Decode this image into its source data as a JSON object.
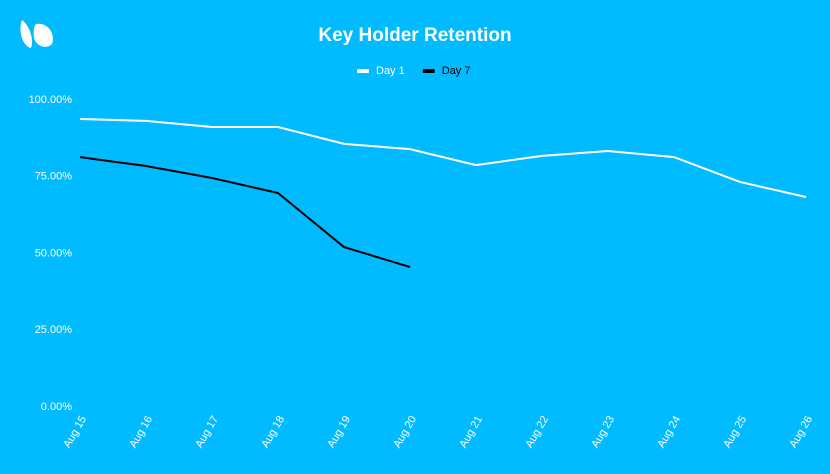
{
  "chart_data": {
    "type": "line",
    "title": "Key Holder Retention",
    "categories": [
      "Aug 15",
      "Aug 16",
      "Aug 17",
      "Aug 18",
      "Aug 19",
      "Aug 20",
      "Aug 21",
      "Aug 22",
      "Aug 23",
      "Aug 24",
      "Aug 25",
      "Aug 26"
    ],
    "series": [
      {
        "name": "Day 1",
        "color": "#ffffff",
        "values": [
          93.8,
          93.2,
          91.2,
          91.2,
          85.7,
          84.0,
          78.8,
          81.8,
          83.4,
          81.4,
          73.3,
          68.4
        ]
      },
      {
        "name": "Day 7",
        "color": "#000000",
        "values": [
          81.4,
          78.5,
          74.6,
          69.7,
          52.1,
          45.6,
          null,
          null,
          null,
          null,
          null,
          null
        ]
      }
    ],
    "ylim": [
      0,
      100
    ],
    "yticks": [
      {
        "value": 0,
        "label": "0.00%"
      },
      {
        "value": 25,
        "label": "25.00%"
      },
      {
        "value": 50,
        "label": "50.00%"
      },
      {
        "value": 75,
        "label": "75.00%"
      },
      {
        "value": 100,
        "label": "100.00%"
      }
    ],
    "grid": false
  }
}
